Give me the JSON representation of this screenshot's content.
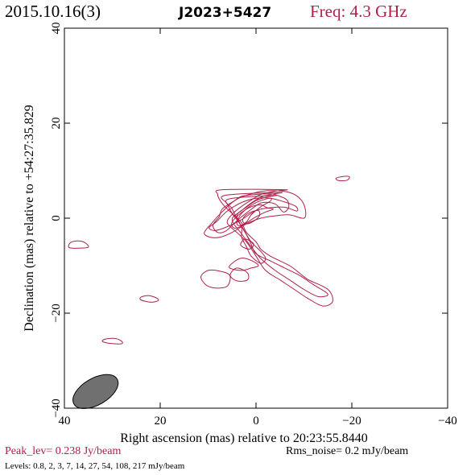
{
  "header": {
    "date": "2015.10.16(3)",
    "source": "J2023+5427",
    "freq": "Freq: 4.3 GHz"
  },
  "footer": {
    "peak": "Peak_lev=  0.238 Jy/beam",
    "rms": "Rms_noise=  0.2 mJy/beam",
    "levels": "Levels: 0.8,   2,   3,   7,  14,  27,  54, 108, 217 mJy/beam"
  },
  "chart_data": {
    "type": "contour",
    "xlabel": "Right ascension (mas) relative to 20:23:55.8440",
    "ylabel": "Declination (mas) relative to +54:27:35.829",
    "xlim": [
      40,
      -40
    ],
    "ylim": [
      -40,
      40
    ],
    "xticks": [
      40,
      20,
      0,
      -20,
      -40
    ],
    "yticks": [
      -40,
      -20,
      0,
      20,
      40
    ],
    "contour_color": "#b0204a",
    "levels_mJy": [
      0.8,
      2,
      3,
      7,
      14,
      27,
      54,
      108,
      217
    ],
    "peak_Jy_per_beam": 0.238,
    "rms_mJy_per_beam": 0.2,
    "beam": {
      "x": 33.5,
      "y": -36.5,
      "major": 5.2,
      "minor": 2.8,
      "pa_deg": 60,
      "fill": "#707070"
    },
    "contours": [
      [
        [
          -6,
          6
        ],
        [
          -4,
          5.7
        ],
        [
          -1,
          5
        ],
        [
          1,
          3.8
        ],
        [
          3,
          2.5
        ],
        [
          5,
          0.8
        ],
        [
          6,
          -1
        ],
        [
          4,
          -3
        ],
        [
          2,
          -5
        ],
        [
          0,
          -8
        ],
        [
          -2,
          -11
        ],
        [
          -5,
          -13
        ],
        [
          -8,
          -15
        ],
        [
          -11,
          -17
        ],
        [
          -14,
          -18.5
        ],
        [
          -16,
          -17.5
        ],
        [
          -15,
          -15
        ],
        [
          -11,
          -13
        ],
        [
          -9,
          -11.5
        ],
        [
          -7,
          -10
        ],
        [
          -3,
          -8
        ],
        [
          -1,
          -6.5
        ],
        [
          0,
          -5
        ],
        [
          2,
          -3
        ],
        [
          3,
          -1
        ],
        [
          5,
          1
        ],
        [
          7,
          3
        ],
        [
          8,
          5
        ],
        [
          7,
          6
        ]
      ],
      [
        [
          -5,
          5.4
        ],
        [
          -3,
          5
        ],
        [
          -1,
          4.4
        ],
        [
          1,
          3.2
        ],
        [
          3,
          1.6
        ],
        [
          5,
          -0.3
        ],
        [
          3,
          -3.3
        ],
        [
          1,
          -6
        ],
        [
          -1,
          -8.5
        ],
        [
          -4,
          -11
        ],
        [
          -7,
          -13
        ],
        [
          -10,
          -15
        ],
        [
          -13,
          -16.5
        ],
        [
          -15,
          -16
        ],
        [
          -12,
          -14
        ],
        [
          -9,
          -12
        ],
        [
          -6,
          -10.5
        ],
        [
          -3,
          -9
        ],
        [
          0,
          -7.5
        ],
        [
          1,
          -5.5
        ],
        [
          2,
          -3.5
        ],
        [
          3.5,
          -1
        ],
        [
          5,
          1
        ],
        [
          6,
          3
        ],
        [
          6.5,
          4.8
        ]
      ],
      [
        [
          -4,
          4.8
        ],
        [
          -2,
          4.4
        ],
        [
          0,
          3.7
        ],
        [
          2,
          2.3
        ],
        [
          4,
          0.5
        ],
        [
          2.5,
          -2.5
        ],
        [
          1,
          -5
        ],
        [
          -1,
          -7
        ],
        [
          -2,
          -8.5
        ],
        [
          -1,
          -9.5
        ],
        [
          1,
          -8
        ],
        [
          2,
          -6
        ],
        [
          3,
          -4
        ],
        [
          3,
          -2
        ],
        [
          4,
          0
        ],
        [
          5,
          2
        ],
        [
          5.8,
          4
        ]
      ],
      [
        [
          -3,
          4.2
        ],
        [
          -1,
          3.7
        ],
        [
          1,
          2.7
        ],
        [
          3,
          1
        ],
        [
          4,
          -0.8
        ],
        [
          3.5,
          -1.6
        ],
        [
          2,
          -0.8
        ],
        [
          1,
          0.7
        ],
        [
          -1,
          2.4
        ],
        [
          -3,
          3.6
        ]
      ],
      [
        [
          -4.3,
          2.8
        ],
        [
          -2.8,
          3.3
        ],
        [
          -1,
          3.2
        ],
        [
          0.7,
          2.1
        ],
        [
          3,
          0.3
        ],
        [
          4.8,
          -1.3
        ],
        [
          6.3,
          -2.7
        ],
        [
          8,
          -3
        ],
        [
          9,
          -1.5
        ],
        [
          7.7,
          0.3
        ],
        [
          7,
          2
        ],
        [
          4.6,
          3.6
        ],
        [
          3,
          4.6
        ],
        [
          0,
          5
        ],
        [
          -3.3,
          5.1
        ],
        [
          -5,
          4.6
        ],
        [
          -6.5,
          3.8
        ],
        [
          -6.8,
          2.2
        ],
        [
          -5.7,
          1.3
        ]
      ],
      [
        [
          -2.3,
          2.2
        ],
        [
          -1,
          2.8
        ],
        [
          1,
          2.4
        ],
        [
          3,
          1.2
        ],
        [
          5,
          -0.8
        ],
        [
          4.7,
          -2
        ],
        [
          3.5,
          -1.9
        ],
        [
          2,
          -1
        ],
        [
          0,
          0.3
        ],
        [
          -2,
          1.3
        ],
        [
          -3.6,
          1.9
        ]
      ],
      [
        [
          -0.5,
          1.6
        ],
        [
          1,
          1.3
        ],
        [
          2.3,
          0.5
        ],
        [
          2.8,
          -0.6
        ],
        [
          2,
          -1.2
        ],
        [
          0.6,
          -0.7
        ],
        [
          -0.7,
          0.5
        ]
      ],
      [
        [
          -8.5,
          1.5
        ],
        [
          -6,
          2.3
        ],
        [
          -3,
          2.2
        ],
        [
          0,
          1.6
        ],
        [
          3,
          -0.3
        ],
        [
          6,
          -1.8
        ],
        [
          8.6,
          -2.6
        ],
        [
          9.8,
          -2
        ],
        [
          8.2,
          -0.7
        ],
        [
          6,
          1.5
        ],
        [
          3,
          3.3
        ],
        [
          0,
          4.2
        ],
        [
          -3,
          4.2
        ],
        [
          -6,
          3.4
        ],
        [
          -8.3,
          2.5
        ]
      ],
      [
        [
          -10,
          0
        ],
        [
          -7,
          0.7
        ],
        [
          -4,
          0.5
        ],
        [
          -1,
          0
        ],
        [
          2,
          -1.2
        ],
        [
          5,
          -3
        ],
        [
          7.5,
          -4
        ],
        [
          9.6,
          -4
        ],
        [
          10.8,
          -3.1
        ],
        [
          9.2,
          -1
        ],
        [
          7,
          1.4
        ],
        [
          4,
          4
        ],
        [
          0,
          5.4
        ],
        [
          -3,
          5.8
        ],
        [
          -7,
          5.4
        ],
        [
          -9.3,
          4
        ],
        [
          -10.3,
          1.8
        ]
      ],
      [
        [
          0.5,
          -5.4
        ],
        [
          2.3,
          -4.4
        ],
        [
          3.2,
          -5.7
        ],
        [
          1.4,
          -6.5
        ]
      ],
      [
        [
          0.8,
          -9
        ],
        [
          3,
          -8.4
        ],
        [
          5,
          -9.5
        ],
        [
          5.5,
          -10.5
        ],
        [
          3,
          -11
        ],
        [
          1,
          -10.5
        ],
        [
          -0.5,
          -10
        ]
      ],
      [
        [
          1.8,
          -11.5
        ],
        [
          4,
          -10.5
        ],
        [
          5.4,
          -12
        ],
        [
          4,
          -13.2
        ],
        [
          1.8,
          -13
        ]
      ],
      [
        [
          20.5,
          -17.4
        ],
        [
          22,
          -17.7
        ],
        [
          24,
          -17.2
        ],
        [
          24,
          -16.6
        ],
        [
          22.3,
          -16.3
        ],
        [
          20.6,
          -16.9
        ]
      ],
      [
        [
          28,
          -26.4
        ],
        [
          30,
          -26.4
        ],
        [
          32,
          -26
        ],
        [
          31.6,
          -25.5
        ],
        [
          29.7,
          -25.3
        ],
        [
          28.2,
          -25.8
        ]
      ],
      [
        [
          35,
          -6.1
        ],
        [
          37,
          -6.3
        ],
        [
          39,
          -6.2
        ],
        [
          38.8,
          -5.2
        ],
        [
          37.3,
          -4.8
        ],
        [
          35.8,
          -5.1
        ]
      ],
      [
        [
          -16.7,
          8.4
        ],
        [
          -18.3,
          8.8
        ],
        [
          -19.5,
          8.7
        ],
        [
          -19,
          8
        ],
        [
          -17.3,
          7.9
        ]
      ],
      [
        [
          5.5,
          -12
        ],
        [
          7.8,
          -11.1
        ],
        [
          10,
          -11
        ],
        [
          11.5,
          -12.3
        ],
        [
          10.5,
          -14
        ],
        [
          8.5,
          -14.7
        ],
        [
          6,
          -14.3
        ]
      ]
    ]
  }
}
